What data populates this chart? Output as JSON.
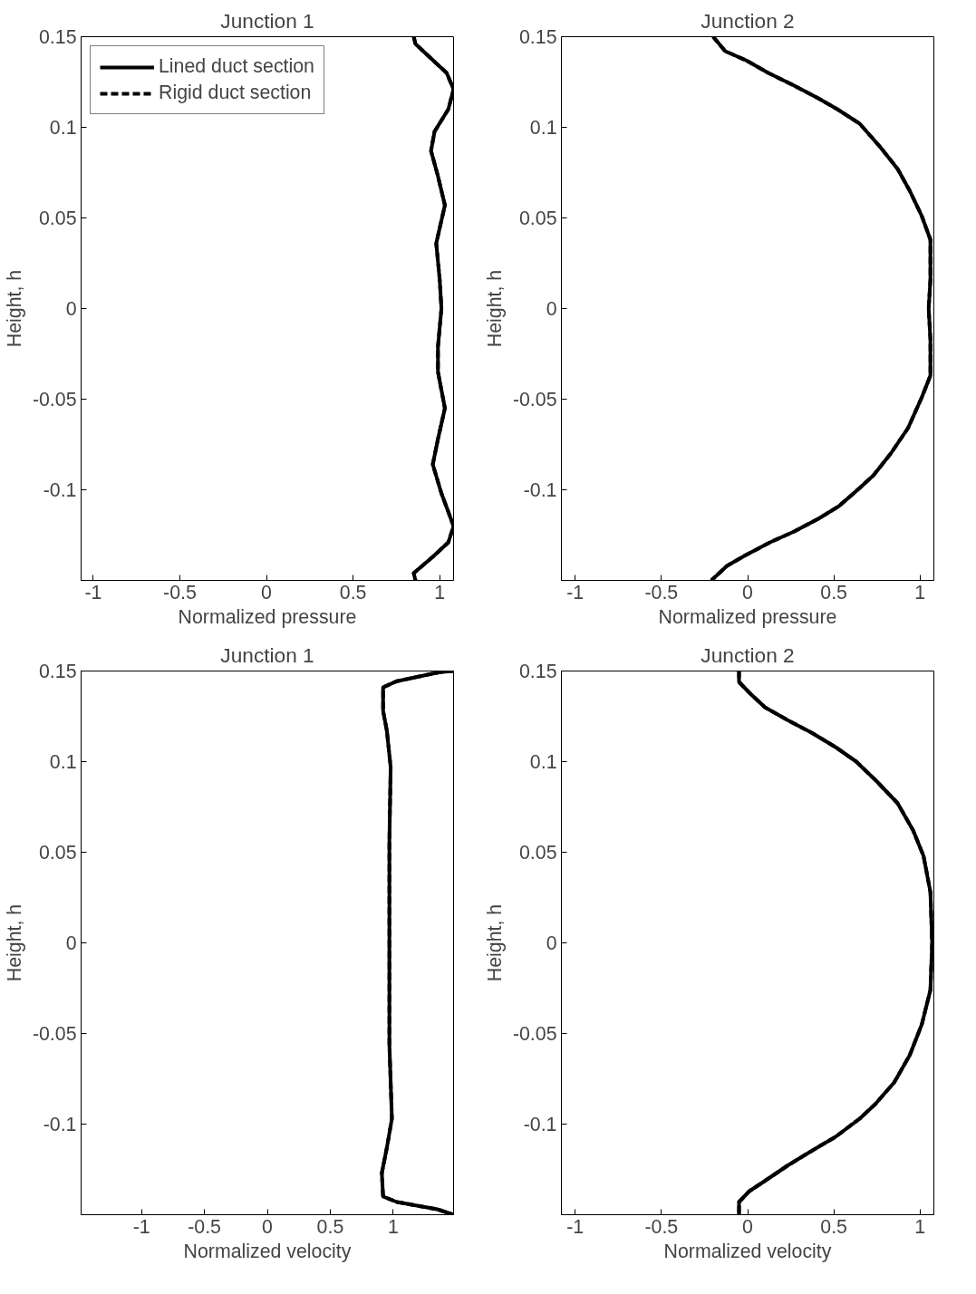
{
  "chart_data": [
    {
      "type": "line",
      "title": "Junction 1",
      "xlabel": "Normalized pressure",
      "ylabel": "Height, h",
      "xlim": [
        -1.07,
        1.08
      ],
      "ylim": [
        -0.15,
        0.15
      ],
      "xticks": [
        -1,
        -0.5,
        0,
        0.5,
        1
      ],
      "yticks": [
        -0.1,
        -0.05,
        0,
        0.05,
        0.1,
        0.15
      ],
      "grid": false,
      "legend": "top left",
      "series": [
        {
          "name": "Lined duct section",
          "color": "#000000",
          "line_style": "solid",
          "x": [
            0.85,
            0.86,
            0.95,
            1.04,
            1.08,
            1.05,
            0.97,
            0.95,
            0.99,
            1.03,
            0.98,
            1.0,
            1.01,
            0.99,
            0.99,
            1.03,
            0.99,
            0.96,
            1.01,
            1.08,
            1.05,
            0.96,
            0.85,
            0.86
          ],
          "values": [
            0.15,
            0.146,
            0.138,
            0.13,
            0.121,
            0.11,
            0.0976,
            0.087,
            0.073,
            0.057,
            0.036,
            0.016,
            0,
            -0.021,
            -0.035,
            -0.055,
            -0.072,
            -0.086,
            -0.102,
            -0.12,
            -0.129,
            -0.137,
            -0.146,
            -0.15
          ]
        },
        {
          "name": "Rigid duct section",
          "color": "#000000",
          "line_style": "dashed",
          "x": [
            0.85,
            0.86,
            0.95,
            1.04,
            1.08,
            1.05,
            0.97,
            0.95,
            0.99,
            1.03,
            0.98,
            1.0,
            1.01,
            0.99,
            0.99,
            1.03,
            0.99,
            0.96,
            1.01,
            1.08,
            1.05,
            0.96,
            0.85,
            0.86
          ],
          "values": [
            0.15,
            0.146,
            0.138,
            0.13,
            0.121,
            0.11,
            0.0976,
            0.087,
            0.073,
            0.057,
            0.036,
            0.016,
            0,
            -0.021,
            -0.035,
            -0.055,
            -0.072,
            -0.086,
            -0.102,
            -0.12,
            -0.129,
            -0.137,
            -0.146,
            -0.15
          ]
        }
      ]
    },
    {
      "type": "line",
      "title": "Junction 2",
      "xlabel": "Normalized pressure",
      "ylabel": "Height, h",
      "xlim": [
        -1.08,
        1.08
      ],
      "ylim": [
        -0.15,
        0.15
      ],
      "xticks": [
        -1,
        -0.5,
        0,
        0.5,
        1
      ],
      "yticks": [
        -0.1,
        -0.05,
        0,
        0.05,
        0.1,
        0.15
      ],
      "grid": false,
      "series": [
        {
          "color": "#000000",
          "line_style": "solid",
          "x": [
            -0.2,
            -0.13,
            -0.01,
            0.12,
            0.27,
            0.41,
            0.52,
            0.65,
            0.77,
            0.87,
            0.94,
            1.01,
            1.06,
            1.06,
            1.05,
            1.06,
            1.06,
            1.01,
            0.93,
            0.83,
            0.73,
            0.65,
            0.53,
            0.41,
            0.27,
            0.13,
            -0.01,
            -0.12,
            -0.21
          ],
          "values": [
            0.15,
            0.142,
            0.137,
            0.13,
            0.123,
            0.116,
            0.11,
            0.102,
            0.089,
            0.077,
            0.065,
            0.051,
            0.038,
            0.016,
            0,
            -0.017,
            -0.037,
            -0.049,
            -0.066,
            -0.08,
            -0.092,
            -0.099,
            -0.109,
            -0.116,
            -0.123,
            -0.129,
            -0.136,
            -0.142,
            -0.15
          ]
        },
        {
          "color": "#000000",
          "line_style": "dashed",
          "x": [
            -0.2,
            -0.13,
            -0.01,
            0.12,
            0.27,
            0.41,
            0.52,
            0.65,
            0.77,
            0.87,
            0.94,
            1.01,
            1.06,
            1.06,
            1.05,
            1.06,
            1.06,
            1.01,
            0.93,
            0.83,
            0.73,
            0.65,
            0.53,
            0.41,
            0.27,
            0.13,
            -0.01,
            -0.12,
            -0.21
          ],
          "values": [
            0.15,
            0.142,
            0.137,
            0.13,
            0.123,
            0.116,
            0.11,
            0.102,
            0.089,
            0.077,
            0.065,
            0.051,
            0.038,
            0.016,
            0,
            -0.017,
            -0.037,
            -0.049,
            -0.066,
            -0.08,
            -0.092,
            -0.099,
            -0.109,
            -0.116,
            -0.123,
            -0.129,
            -0.136,
            -0.142,
            -0.15
          ]
        }
      ]
    },
    {
      "type": "line",
      "title": "Junction 1",
      "xlabel": "Normalized velocity",
      "ylabel": "Height, h",
      "xlim": [
        -1.48,
        1.48
      ],
      "ylim": [
        -0.15,
        0.15
      ],
      "xticks": [
        -1,
        -0.5,
        0,
        0.5,
        1
      ],
      "yticks": [
        -0.1,
        -0.05,
        0,
        0.05,
        0.1,
        0.15
      ],
      "grid": false,
      "series": [
        {
          "color": "#000000",
          "line_style": "solid",
          "x": [
            1.48,
            1.37,
            1.03,
            0.92,
            0.92,
            0.95,
            0.98,
            0.97,
            0.97,
            0.97,
            0.99,
            0.95,
            0.91,
            0.92,
            1.03,
            1.35,
            1.48
          ],
          "values": [
            0.15,
            0.1494,
            0.1444,
            0.141,
            0.128,
            0.117,
            0.097,
            0.056,
            0,
            -0.056,
            -0.097,
            -0.113,
            -0.127,
            -0.14,
            -0.143,
            -0.147,
            -0.15
          ]
        },
        {
          "color": "#000000",
          "line_style": "dashed",
          "x": [
            1.48,
            1.37,
            1.03,
            0.92,
            0.92,
            0.95,
            0.98,
            0.97,
            0.97,
            0.97,
            0.99,
            0.95,
            0.91,
            0.92,
            1.03,
            1.35,
            1.48
          ],
          "values": [
            0.15,
            0.1494,
            0.1444,
            0.141,
            0.128,
            0.117,
            0.097,
            0.056,
            0,
            -0.056,
            -0.097,
            -0.113,
            -0.127,
            -0.14,
            -0.143,
            -0.147,
            -0.15
          ]
        }
      ]
    },
    {
      "type": "line",
      "title": "Junction 2",
      "xlabel": "Normalized velocity",
      "ylabel": "Height, h",
      "xlim": [
        -1.08,
        1.08
      ],
      "ylim": [
        -0.15,
        0.15
      ],
      "xticks": [
        -1,
        -0.5,
        0,
        0.5,
        1
      ],
      "yticks": [
        -0.1,
        -0.05,
        0,
        0.05,
        0.1,
        0.15
      ],
      "grid": false,
      "series": [
        {
          "color": "#000000",
          "line_style": "solid",
          "x": [
            -0.05,
            -0.05,
            0.01,
            0.1,
            0.23,
            0.37,
            0.51,
            0.63,
            0.75,
            0.87,
            0.96,
            1.02,
            1.06,
            1.07,
            1.06,
            1.01,
            0.94,
            0.85,
            0.74,
            0.65,
            0.51,
            0.35,
            0.23,
            0.09,
            0.01,
            -0.05,
            -0.05
          ],
          "values": [
            0.15,
            0.144,
            0.138,
            0.13,
            0.123,
            0.116,
            0.108,
            0.1,
            0.089,
            0.077,
            0.062,
            0.048,
            0.028,
            0,
            -0.026,
            -0.045,
            -0.062,
            -0.077,
            -0.089,
            -0.097,
            -0.107,
            -0.116,
            -0.123,
            -0.132,
            -0.137,
            -0.143,
            -0.15
          ]
        },
        {
          "color": "#000000",
          "line_style": "dashed",
          "x": [
            -0.05,
            -0.05,
            0.01,
            0.1,
            0.23,
            0.37,
            0.51,
            0.63,
            0.75,
            0.87,
            0.96,
            1.02,
            1.06,
            1.07,
            1.06,
            1.01,
            0.94,
            0.85,
            0.74,
            0.65,
            0.51,
            0.35,
            0.23,
            0.09,
            0.01,
            -0.05,
            -0.05
          ],
          "values": [
            0.15,
            0.144,
            0.138,
            0.13,
            0.123,
            0.116,
            0.108,
            0.1,
            0.089,
            0.077,
            0.062,
            0.048,
            0.028,
            0,
            -0.026,
            -0.045,
            -0.062,
            -0.077,
            -0.089,
            -0.097,
            -0.107,
            -0.116,
            -0.123,
            -0.132,
            -0.137,
            -0.143,
            -0.15
          ]
        }
      ]
    }
  ]
}
